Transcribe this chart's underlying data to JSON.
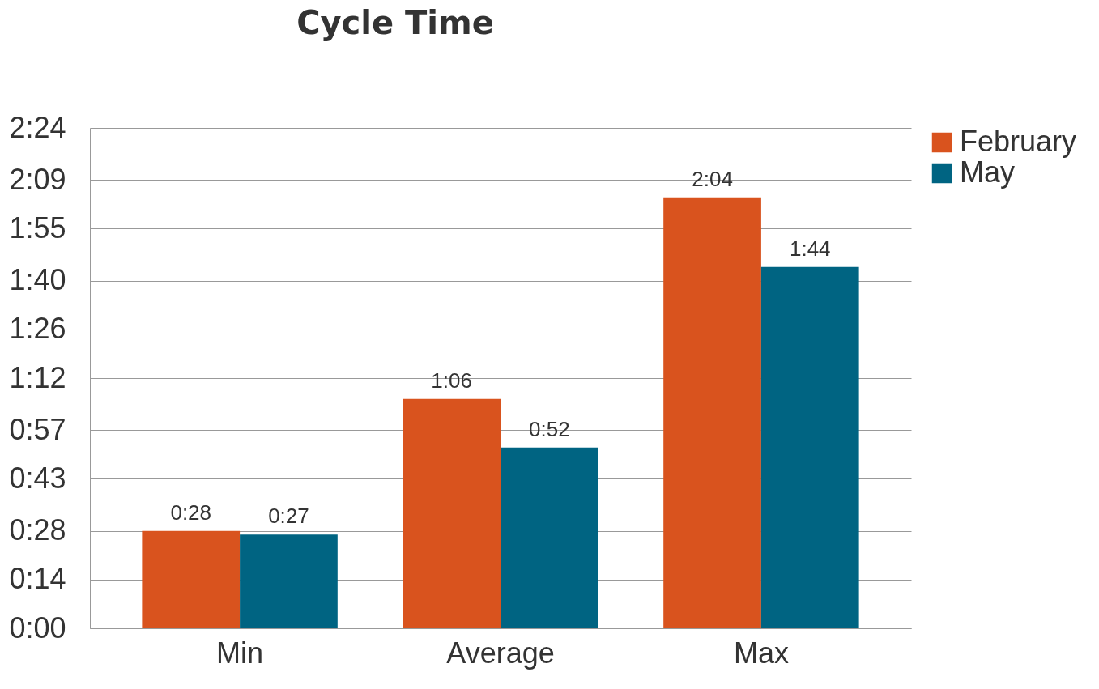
{
  "chart_data": {
    "type": "bar",
    "title": "Cycle Time",
    "categories": [
      "Min",
      "Average",
      "Max"
    ],
    "series": [
      {
        "name": "February",
        "color": "#d9531e",
        "values": [
          28,
          66,
          124
        ],
        "value_labels": [
          "0:28",
          "1:06",
          "2:04"
        ]
      },
      {
        "name": "May",
        "color": "#006482",
        "values": [
          27,
          52,
          104
        ],
        "value_labels": [
          "0:27",
          "0:52",
          "1:44"
        ]
      }
    ],
    "ylim": [
      0,
      144
    ],
    "yticks": [
      {
        "value": 0,
        "label": "0:00"
      },
      {
        "value": 14,
        "label": "0:14"
      },
      {
        "value": 28,
        "label": "0:28"
      },
      {
        "value": 43,
        "label": "0:43"
      },
      {
        "value": 57,
        "label": "0:57"
      },
      {
        "value": 72,
        "label": "1:12"
      },
      {
        "value": 86,
        "label": "1:26"
      },
      {
        "value": 100,
        "label": "1:40"
      },
      {
        "value": 115,
        "label": "1:55"
      },
      {
        "value": 129,
        "label": "2:09"
      },
      {
        "value": 144,
        "label": "2:24"
      }
    ],
    "grid": "y",
    "legend": "right"
  }
}
